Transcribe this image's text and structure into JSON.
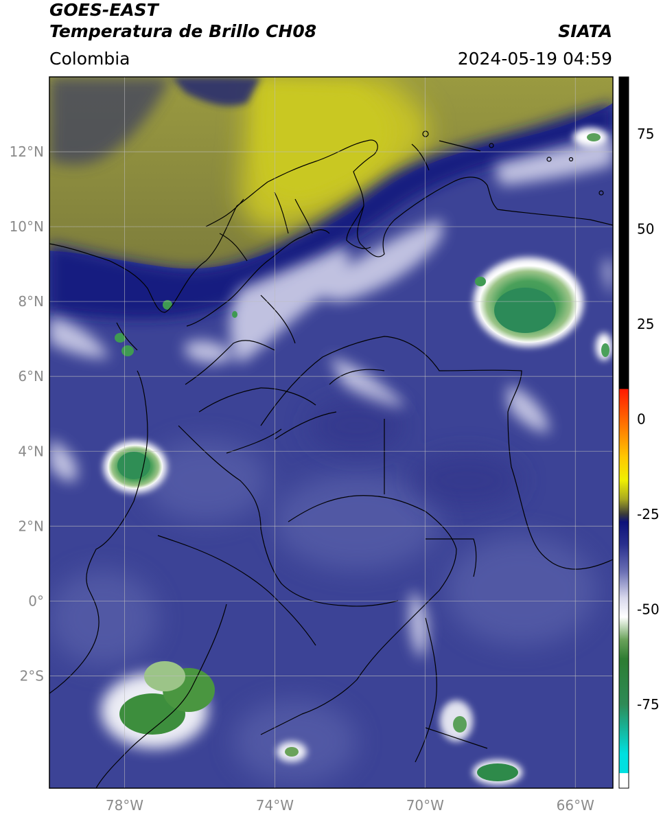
{
  "header": {
    "satellite": "GOES-EAST",
    "product": "Temperatura de Brillo CH08",
    "brand": "SIATA",
    "region": "Colombia",
    "datetime": "2024-05-19 04:59"
  },
  "map_axes": {
    "lon_range": [
      -80,
      -65
    ],
    "lat_range": [
      -5,
      14
    ],
    "lon_ticks": [
      -78,
      -74,
      -70,
      -66
    ],
    "lat_ticks": [
      12,
      10,
      8,
      6,
      4,
      2,
      0,
      -2
    ],
    "lon_tick_labels": [
      "78°W",
      "74°W",
      "70°W",
      "66°W"
    ],
    "lat_tick_labels": [
      "12°N",
      "10°N",
      "8°N",
      "6°N",
      "4°N",
      "2°N",
      "0°",
      "2°S"
    ],
    "grid": true
  },
  "colorbar": {
    "range": [
      -97,
      90
    ],
    "ticks": [
      75,
      50,
      25,
      0,
      -25,
      -50,
      -75
    ],
    "tick_labels": [
      "75",
      "50",
      "25",
      "0",
      "-25",
      "-50",
      "-75"
    ],
    "stops": [
      {
        "value": 90,
        "color": "#000000"
      },
      {
        "value": 8,
        "color": "#000000"
      },
      {
        "value": 7.9,
        "color": "#ff1a00"
      },
      {
        "value": -2,
        "color": "#ff7a00"
      },
      {
        "value": -10,
        "color": "#ffc800"
      },
      {
        "value": -16,
        "color": "#f0f000"
      },
      {
        "value": -21,
        "color": "#a8a820"
      },
      {
        "value": -25,
        "color": "#3a3a3a"
      },
      {
        "value": -27,
        "color": "#0d127a"
      },
      {
        "value": -33,
        "color": "#2a308e"
      },
      {
        "value": -40,
        "color": "#6a6fb4"
      },
      {
        "value": -47,
        "color": "#d8d8ec"
      },
      {
        "value": -52,
        "color": "#ffffff"
      },
      {
        "value": -58,
        "color": "#6aa25a"
      },
      {
        "value": -63,
        "color": "#2e7d32"
      },
      {
        "value": -75,
        "color": "#2e8b57"
      },
      {
        "value": -88,
        "color": "#00e0e0"
      },
      {
        "value": -93,
        "color": "#00e0e0"
      },
      {
        "value": -93.1,
        "color": "#ffffff"
      },
      {
        "value": -97,
        "color": "#ffffff"
      }
    ]
  },
  "colors": {
    "background_blue": "#3c4396",
    "deep_blue": "#151a80",
    "dry_olive": "#8f8f3e",
    "dry_yellow": "#c6c226",
    "cold_green": "#3f9a52",
    "grid": "#bdbdbd"
  }
}
